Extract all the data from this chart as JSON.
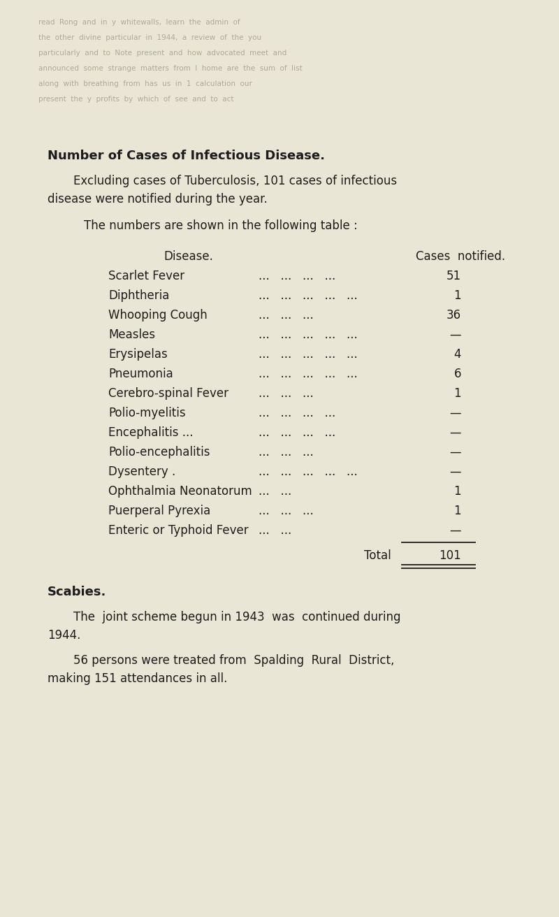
{
  "bg_color": "#eae6d5",
  "text_color": "#1c1c1c",
  "title": "Number of Cases of Infectious Disease.",
  "para1a": "Excluding cases of Tuberculosis, 101 cases of infectious",
  "para1b": "disease were notified during the year.",
  "para2": "The numbers are shown in the following table :",
  "col_header_left": "Disease.",
  "col_header_right": "Cases  notified.",
  "diseases": [
    "Scarlet Fever",
    "Diphtheria",
    "Whooping Cough",
    "Measles",
    "Erysipelas",
    "Pneumonia",
    "Cerebro-spinal Fever",
    "Polio-myelitis",
    "Encephalitis ...",
    "Polio-encephalitis",
    "Dysentery .",
    "Ophthalmia Neonatorum",
    "Puerperal Pyrexia",
    "Enteric or Typhoid Fever"
  ],
  "dots": [
    "...   ...   ...   ...",
    "...   ...   ...   ...   ...",
    "...   ...   ...",
    "...   ...   ...   ...   ...",
    "...   ...   ...   ...   ...",
    "...   ...   ...   ...   ...",
    "...   ...   ...",
    "...   ...   ...   ...",
    "...   ...   ...   ...",
    "...   ...   ...",
    "...   ...   ...   ...   ...",
    "...   ...",
    "...   ...   ...",
    "...   ..."
  ],
  "cases": [
    "51",
    "1",
    "36",
    "—",
    "4",
    "6",
    "1",
    "—",
    "—",
    "—",
    "—",
    "1",
    "1",
    "—"
  ],
  "total_label": "Total",
  "total_value": "101",
  "scabies_title": "Scabies.",
  "scabies_p1a": "The  joint scheme begun in 1943  was  continued during",
  "scabies_p1b": "1944.",
  "scabies_p2a": "56 persons were treated from  Spalding  Rural  District,",
  "scabies_p2b": "making 151 attendances in all.",
  "watermark_lines": [
    "read  Rong  and  in  y  whitewalls,  learn  the  admin  of",
    "the  other  divine  particular  in  1944,  a  review  of  the  you",
    "particularly  and  to  Note  present  and  how  advocated  meet  and",
    "announced  some  strange  matters  from  I  home  are  the  sum  of  list",
    "along  with  breathing  from  has  us  in  1  calculation  our",
    "present  the  y  profits  by  which  of  see  and  to  act"
  ]
}
